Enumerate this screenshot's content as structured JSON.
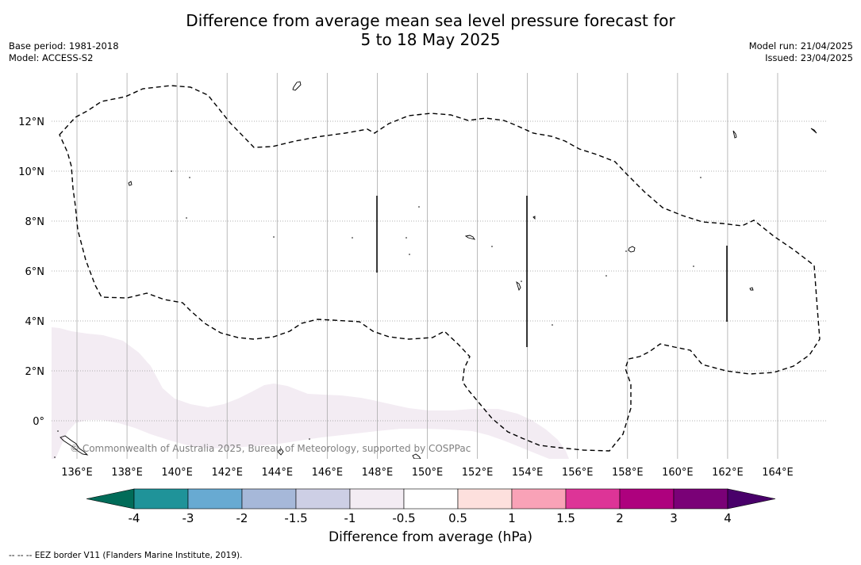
{
  "header": {
    "title_line1": "Difference from average mean sea level pressure forecast for",
    "title_line2": "5 to 18 May 2025",
    "base_period": "Base period: 1981-2018",
    "model": "Model: ACCESS-S2",
    "model_run": "Model run: 21/04/2025",
    "issued": "Issued: 23/04/2025"
  },
  "map": {
    "credit": "© Commonwealth of Australia 2025, Bureau of Meteorology, supported by COSPPac",
    "lon_labels": [
      "136°E",
      "138°E",
      "140°E",
      "142°E",
      "144°E",
      "146°E",
      "148°E",
      "150°E",
      "152°E",
      "154°E",
      "156°E",
      "158°E",
      "160°E",
      "162°E",
      "164°E"
    ],
    "lat_labels": [
      "12°N",
      "10°N",
      "8°N",
      "6°N",
      "4°N",
      "2°N",
      "0°"
    ],
    "shaded_region_color": "#f3ecf3",
    "shaded_region_category": "-1 to -0.5"
  },
  "colorbar": {
    "colors": [
      "#1f9399",
      "#68aad2",
      "#a6b8d9",
      "#cdcfe5",
      "#f3ecf3",
      "#ffffff",
      "#fde0dd",
      "#f9a2b7",
      "#dd3497",
      "#ae017e",
      "#7a0177"
    ],
    "under_color": "#016c59",
    "over_color": "#49006a",
    "tick_labels": [
      "-4",
      "-3",
      "-2",
      "-1.5",
      "-1",
      "-0.5",
      "0.5",
      "1",
      "1.5",
      "2",
      "3",
      "4"
    ],
    "label": "Difference from average (hPa)"
  },
  "footnote": "--  --  -- EEZ border V11 (Flanders Marine Institute, 2019)."
}
